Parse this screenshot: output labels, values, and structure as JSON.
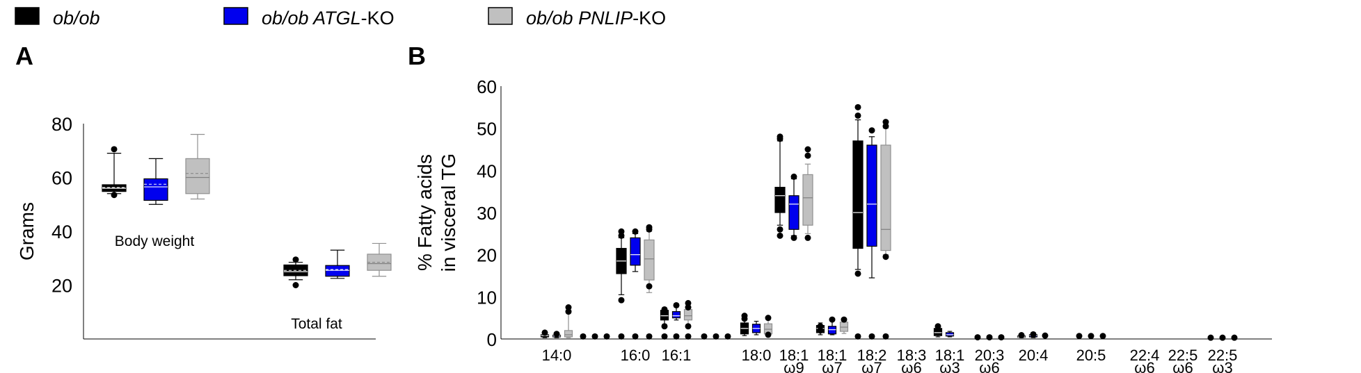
{
  "legend": [
    {
      "name": "ob/ob",
      "italic_part": "ob/ob",
      "plain_part": "",
      "color": "#000000"
    },
    {
      "name": "ob/ob ATGL-KO",
      "italic_part": "ob/ob ATGL",
      "plain_part": "-KO",
      "color": "#0000ee"
    },
    {
      "name": "ob/ob PNLIP-KO",
      "italic_part": "ob/ob PNLIP",
      "plain_part": "-KO",
      "color": "#c0c0c0"
    }
  ],
  "chart_data": [
    {
      "panel": "A",
      "type": "box",
      "ylabel": "Grams",
      "ylim": [
        0,
        80
      ],
      "yticks": [
        20,
        40,
        60,
        80
      ],
      "groups": [
        {
          "label": "Body weight",
          "boxes": [
            {
              "series": "ob/ob",
              "whisker_low": 54,
              "q1": 54.8,
              "median": 56,
              "mean": 56.3,
              "q3": 57.3,
              "whisker_high": 69,
              "outliers": [
                53.5,
                70.5
              ]
            },
            {
              "series": "ob/ob ATGL-KO",
              "whisker_low": 50,
              "q1": 51.5,
              "median": 56.5,
              "mean": 57.5,
              "q3": 59.5,
              "whisker_high": 67,
              "outliers": []
            },
            {
              "series": "ob/ob PNLIP-KO",
              "whisker_low": 52,
              "q1": 54,
              "median": 60,
              "mean": 61.5,
              "q3": 67,
              "whisker_high": 76,
              "outliers": []
            }
          ]
        },
        {
          "label": "Total fat",
          "boxes": [
            {
              "series": "ob/ob",
              "whisker_low": 22,
              "q1": 23.5,
              "median": 25,
              "mean": 25.5,
              "q3": 27.5,
              "whisker_high": 28.5,
              "outliers": [
                20,
                29.5
              ]
            },
            {
              "series": "ob/ob ATGL-KO",
              "whisker_low": 22.5,
              "q1": 23.3,
              "median": 25.5,
              "mean": 25.8,
              "q3": 27.3,
              "whisker_high": 33,
              "outliers": []
            },
            {
              "series": "ob/ob PNLIP-KO",
              "whisker_low": 23.3,
              "q1": 25.5,
              "median": 28,
              "mean": 28.5,
              "q3": 31.5,
              "whisker_high": 35.5,
              "outliers": []
            }
          ]
        }
      ]
    },
    {
      "panel": "B",
      "type": "box",
      "ylabel_lines": [
        "% Fatty acids",
        "in visceral TG"
      ],
      "ylim": [
        0,
        60
      ],
      "yticks": [
        0,
        10,
        20,
        30,
        40,
        50,
        60
      ],
      "categories": [
        {
          "label": "14:0",
          "sub": ""
        },
        {
          "label": "",
          "sub": ""
        },
        {
          "label": "16:0",
          "sub": ""
        },
        {
          "label": "16:1",
          "sub": ""
        },
        {
          "label": "",
          "sub": ""
        },
        {
          "label": "18:0",
          "sub": ""
        },
        {
          "label": "18:1",
          "sub": "ω9"
        },
        {
          "label": "18:1",
          "sub": "ω7"
        },
        {
          "label": "18:2",
          "sub": "ω7"
        },
        {
          "label": "18:3",
          "sub": "ω6"
        },
        {
          "label": "18:1",
          "sub": "ω3"
        },
        {
          "label": "20:3",
          "sub": "ω6"
        },
        {
          "label": "20:4",
          "sub": ""
        },
        {
          "label": "20:5",
          "sub": ""
        },
        {
          "label": "22:4",
          "sub": "ω6"
        },
        {
          "label": "22:5",
          "sub": "ω6"
        },
        {
          "label": "22:5",
          "sub": "ω3"
        }
      ],
      "boxes": [
        [
          {
            "series": "ob/ob",
            "whisker_low": 0.3,
            "q1": 0.5,
            "median": 0.8,
            "q3": 1.0,
            "whisker_high": 1.3,
            "outliers": [
              1.5
            ]
          },
          {
            "series": "ob/ob ATGL-KO",
            "whisker_low": 0.3,
            "q1": 0.5,
            "median": 0.7,
            "q3": 0.9,
            "whisker_high": 1.1,
            "outliers": [
              1.2
            ]
          },
          {
            "series": "ob/ob PNLIP-KO",
            "whisker_low": 0.3,
            "q1": 0.5,
            "median": 1.0,
            "q3": 2.0,
            "whisker_high": 6.0,
            "outliers": [
              6.5,
              7.5
            ]
          }
        ],
        [
          {
            "series": "ob/ob",
            "points": [
              0.6
            ]
          },
          {
            "series": "ob/ob ATGL-KO",
            "points": [
              0.6
            ]
          },
          {
            "series": "ob/ob PNLIP-KO",
            "points": [
              0.6
            ]
          }
        ],
        [
          {
            "series": "ob/ob",
            "whisker_low": 10.5,
            "q1": 15.5,
            "median": 18.5,
            "q3": 21.5,
            "whisker_high": 24,
            "outliers": [
              9.2,
              24.5,
              25.5
            ],
            "extra_points": [
              0.6
            ]
          },
          {
            "series": "ob/ob ATGL-KO",
            "whisker_low": 16,
            "q1": 17.5,
            "median": 20,
            "q3": 24,
            "whisker_high": 25,
            "outliers": [
              25.5
            ],
            "extra_points": [
              0.6
            ]
          },
          {
            "series": "ob/ob PNLIP-KO",
            "whisker_low": 11,
            "q1": 14,
            "median": 19,
            "q3": 23.5,
            "whisker_high": 25.5,
            "outliers": [
              12.5,
              26,
              26.5
            ],
            "extra_points": [
              0.6
            ]
          }
        ],
        [
          {
            "series": "ob/ob",
            "whisker_low": 3.5,
            "q1": 4.5,
            "median": 5.5,
            "q3": 6.8,
            "whisker_high": 7.5,
            "outliers": [
              3.0,
              6.5,
              7.0,
              0.6
            ]
          },
          {
            "series": "ob/ob ATGL-KO",
            "whisker_low": 4.5,
            "q1": 5.0,
            "median": 5.5,
            "q3": 6.5,
            "whisker_high": 7.5,
            "outliers": [
              8.0,
              0.6
            ]
          },
          {
            "series": "ob/ob PNLIP-KO",
            "whisker_low": 3.5,
            "q1": 4.5,
            "median": 5.5,
            "q3": 7.0,
            "whisker_high": 8.0,
            "outliers": [
              3.0,
              7.5,
              8.5,
              0.6
            ]
          }
        ],
        [
          {
            "series": "ob/ob",
            "points": [
              0.6
            ]
          },
          {
            "series": "ob/ob ATGL-KO",
            "points": [
              0.6
            ]
          },
          {
            "series": "ob/ob PNLIP-KO",
            "points": [
              0.6
            ]
          }
        ],
        [
          {
            "series": "ob/ob",
            "whisker_low": 0.8,
            "q1": 1.2,
            "median": 2.5,
            "q3": 3.8,
            "whisker_high": 4.5,
            "outliers": [
              4.8,
              5.5
            ]
          },
          {
            "series": "ob/ob ATGL-KO",
            "whisker_low": 1.0,
            "q1": 1.5,
            "median": 2.5,
            "q3": 3.5,
            "whisker_high": 4.2,
            "outliers": []
          },
          {
            "series": "ob/ob PNLIP-KO",
            "whisker_low": 0.8,
            "q1": 1.2,
            "median": 2.3,
            "q3": 3.6,
            "whisker_high": 4.5,
            "outliers": [
              1.0,
              5.0
            ]
          }
        ],
        [
          {
            "series": "ob/ob",
            "whisker_low": 27,
            "q1": 30,
            "median": 34,
            "q3": 36,
            "whisker_high": 47,
            "outliers": [
              26,
              47.5,
              48,
              24.5
            ]
          },
          {
            "series": "ob/ob ATGL-KO",
            "whisker_low": 24.5,
            "q1": 26,
            "median": 32,
            "q3": 34,
            "whisker_high": 38,
            "outliers": [
              24,
              38.5
            ]
          },
          {
            "series": "ob/ob PNLIP-KO",
            "whisker_low": 25,
            "q1": 27,
            "median": 33.5,
            "q3": 39,
            "whisker_high": 41.5,
            "outliers": [
              24,
              43.5,
              45
            ]
          }
        ],
        [
          {
            "series": "ob/ob",
            "whisker_low": 1.0,
            "q1": 1.5,
            "median": 2.5,
            "q3": 3.2,
            "whisker_high": 3.8,
            "outliers": [
              2.0,
              3.0
            ]
          },
          {
            "series": "ob/ob ATGL-KO",
            "whisker_low": 1.0,
            "q1": 1.2,
            "median": 2.2,
            "q3": 3.0,
            "whisker_high": 4.3,
            "outliers": [
              4.6
            ]
          },
          {
            "series": "ob/ob PNLIP-KO",
            "whisker_low": 1.3,
            "q1": 1.8,
            "median": 2.8,
            "q3": 4.0,
            "whisker_high": 4.5,
            "outliers": [
              4.6
            ]
          }
        ],
        [
          {
            "series": "ob/ob",
            "whisker_low": 16.5,
            "q1": 21.5,
            "median": 30,
            "q3": 47,
            "whisker_high": 52,
            "outliers": [
              15.5,
              53,
              55
            ],
            "extra_points": [
              0.6
            ]
          },
          {
            "series": "ob/ob ATGL-KO",
            "whisker_low": 14.5,
            "q1": 22,
            "median": 32,
            "q3": 46,
            "whisker_high": 48,
            "outliers": [
              49.5
            ],
            "extra_points": [
              0.6
            ]
          },
          {
            "series": "ob/ob PNLIP-KO",
            "whisker_low": 20,
            "q1": 21,
            "median": 26,
            "q3": 46,
            "whisker_high": 50,
            "outliers": [
              19.5,
              50.5,
              51.5
            ],
            "extra_points": [
              0.6
            ]
          }
        ],
        [],
        [
          {
            "series": "ob/ob",
            "whisker_low": 0.5,
            "q1": 0.8,
            "median": 1.5,
            "q3": 2.5,
            "whisker_high": 2.8,
            "outliers": [
              3.0
            ]
          },
          {
            "series": "ob/ob ATGL-KO",
            "whisker_low": 0.5,
            "q1": 0.7,
            "median": 1.0,
            "q3": 1.5,
            "whisker_high": 1.8,
            "outliers": []
          },
          {
            "series": "ob/ob PNLIP-KO",
            "points": []
          }
        ],
        [
          {
            "series": "ob/ob",
            "points": [
              0.4
            ]
          },
          {
            "series": "ob/ob ATGL-KO",
            "points": [
              0.4
            ]
          },
          {
            "series": "ob/ob PNLIP-KO",
            "points": [
              0.4
            ]
          }
        ],
        [
          {
            "series": "ob/ob",
            "whisker_low": 0.3,
            "q1": 0.4,
            "median": 0.5,
            "q3": 0.7,
            "whisker_high": 0.9,
            "outliers": [
              0.9
            ]
          },
          {
            "series": "ob/ob ATGL-KO",
            "whisker_low": 0.3,
            "q1": 0.5,
            "median": 0.8,
            "q3": 1.0,
            "whisker_high": 1.1,
            "outliers": [
              1.1
            ]
          },
          {
            "series": "ob/ob PNLIP-KO",
            "points": [
              0.8
            ]
          }
        ],
        [
          {
            "series": "ob/ob",
            "points": [
              0.7
            ]
          },
          {
            "series": "ob/ob ATGL-KO",
            "points": [
              0.7
            ]
          },
          {
            "series": "ob/ob PNLIP-KO",
            "points": [
              0.7
            ]
          }
        ],
        [],
        [],
        [
          {
            "series": "ob/ob",
            "points": [
              0.3
            ]
          },
          {
            "series": "ob/ob ATGL-KO",
            "points": [
              0.3
            ]
          },
          {
            "series": "ob/ob PNLIP-KO",
            "points": [
              0.3
            ]
          }
        ]
      ]
    }
  ]
}
